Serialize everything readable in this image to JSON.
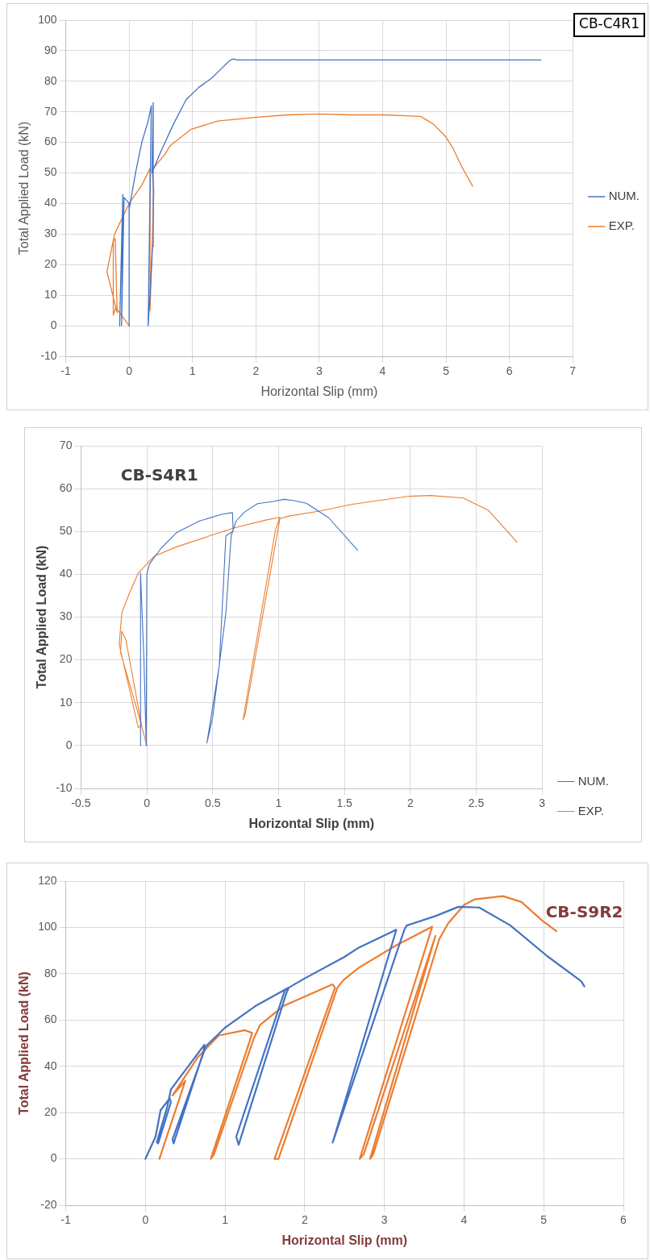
{
  "chart_data": [
    {
      "type": "line",
      "title": "CB-C4R1",
      "xlabel": "Horizontal Slip (mm)",
      "ylabel": "Total Applied Load (kN)",
      "xlim": [
        -1,
        7
      ],
      "ylim": [
        -10,
        100
      ],
      "xticks": [
        -1,
        0,
        1,
        2,
        3,
        4,
        5,
        6,
        7
      ],
      "yticks": [
        -10,
        0,
        10,
        20,
        30,
        40,
        50,
        60,
        70,
        80,
        90,
        100
      ],
      "grid": true,
      "legend": "right",
      "marker": "none",
      "series": [
        {
          "name": "NUM.",
          "color": "#4472c4",
          "x": [
            -0.15,
            -0.1,
            -0.12,
            -0.08,
            0,
            0,
            0,
            0.1,
            0.2,
            0.3,
            0.35,
            0.3,
            0.33,
            0.37,
            0.38,
            0.36,
            0.5,
            0.7,
            0.9,
            1.1,
            1.3,
            1.45,
            1.55,
            1.6,
            1.65,
            1.7,
            6.5
          ],
          "values": [
            0,
            43,
            0,
            42,
            40,
            0,
            38,
            50,
            60,
            67,
            72,
            0,
            10,
            26,
            73,
            50,
            57,
            66,
            74,
            78,
            81,
            84,
            86,
            87,
            87.3,
            87,
            87
          ]
        },
        {
          "name": "EXP.",
          "color": "#ed7d31",
          "x": [
            0,
            -0.21,
            -0.25,
            -0.25,
            -0.22,
            -0.19,
            -0.35,
            -0.23,
            0,
            0.2,
            0.33,
            0.33,
            0.39,
            0.36,
            0.56,
            0.65,
            0.98,
            1.4,
            2.06,
            2.5,
            3,
            3.5,
            4,
            4.6,
            4.8,
            4.99,
            5.1,
            5.25,
            5.42
          ],
          "values": [
            0,
            6,
            3.5,
            27.7,
            28.5,
            4.3,
            17.7,
            30,
            40,
            46,
            51.5,
            5,
            44,
            51,
            56,
            59,
            64.3,
            67,
            68.3,
            69,
            69.3,
            69,
            69,
            68.5,
            66,
            62,
            58.5,
            52,
            45.7
          ]
        }
      ]
    },
    {
      "type": "line",
      "title": "CB-S4R1",
      "xlabel": "Horizontal Slip (mm)",
      "ylabel": "Total Applied Load (kN)",
      "xlim": [
        -0.5,
        3
      ],
      "ylim": [
        -10,
        70
      ],
      "xticks": [
        -0.5,
        0,
        0.5,
        1,
        1.5,
        2,
        2.5,
        3
      ],
      "yticks": [
        -10,
        0,
        10,
        20,
        30,
        40,
        50,
        60,
        70
      ],
      "grid": true,
      "legend": "bottom right",
      "marker": "none",
      "series": [
        {
          "name": "NUM.",
          "color": "#4472c4",
          "x": [
            -0.048,
            -0.048,
            -0.022,
            -0.005,
            0,
            0.02,
            0.106,
            0.225,
            0.396,
            0.567,
            0.65,
            0.655,
            0.6,
            0.55,
            0.456,
            0.5,
            0.6,
            0.64,
            0.677,
            0.74,
            0.84,
            0.96,
            1.04,
            1.1,
            1.21,
            1.38,
            1.6
          ],
          "values": [
            0,
            40.3,
            20,
            0,
            40,
            42.4,
            46,
            49.7,
            52.4,
            54,
            54.4,
            50,
            49,
            18.8,
            0.6,
            6.7,
            31,
            49,
            52.4,
            54.5,
            56.5,
            57,
            57.5,
            57.3,
            56.6,
            53.2,
            45.6
          ]
        },
        {
          "name": "EXP.",
          "color": "#ed7d31",
          "x": [
            0,
            -0.048,
            -0.2,
            -0.19,
            -0.16,
            -0.04,
            -0.065,
            -0.21,
            -0.19,
            -0.13,
            -0.065,
            0.055,
            0.225,
            0.48,
            0.67,
            0.91,
            1.01,
            0.976,
            0.73,
            0.746,
            1.01,
            1.08,
            1.32,
            1.55,
            1.98,
            2.15,
            2.4,
            2.59,
            2.81
          ],
          "values": [
            0,
            5.5,
            21.8,
            26.7,
            24.8,
            4.8,
            4.2,
            23.6,
            31,
            35.8,
            40.3,
            44.2,
            46.4,
            49,
            50.9,
            52.7,
            53.3,
            50.3,
            6,
            7.3,
            53,
            53.6,
            54.8,
            56.3,
            58.2,
            58.4,
            57.8,
            55,
            47.5
          ]
        }
      ]
    },
    {
      "type": "line",
      "title": "CB-S9R2",
      "xlabel": "Horizontal Slip (mm)",
      "ylabel": "Total Applied Load (kN)",
      "xlim": [
        -1,
        6
      ],
      "ylim": [
        -20,
        120
      ],
      "xticks": [
        -1,
        0,
        1,
        2,
        3,
        4,
        5,
        6
      ],
      "yticks": [
        -20,
        0,
        20,
        40,
        60,
        80,
        100,
        120
      ],
      "grid": true,
      "marker": "none",
      "series": [
        {
          "color": "#4472c4",
          "x": [
            0,
            0.127,
            0.19,
            0.305,
            0.32,
            0.16,
            0.143,
            0.27,
            0.32,
            0.5,
            0.74,
            0.73,
            0.354,
            0.34,
            0.76,
            1.0,
            1.38,
            1.8,
            1.77,
            1.17,
            1.14,
            1.75,
            1.8,
            2.0,
            2.49,
            2.68,
            3.15,
            2.35,
            2.37,
            3.25,
            3.28,
            3.64,
            3.93,
            4.19,
            4.58,
            5.04,
            5.47,
            5.51
          ],
          "values": [
            0,
            9.6,
            21,
            26.2,
            24.5,
            6.7,
            7.2,
            22,
            30,
            38.3,
            49.3,
            46.4,
            6.7,
            8.4,
            48.7,
            56.7,
            66,
            74,
            71.7,
            6.1,
            9.6,
            72.8,
            74,
            78,
            87.1,
            91.3,
            99,
            7,
            9,
            99,
            100.8,
            104.9,
            108.9,
            108.6,
            100.9,
            87.7,
            76.8,
            74.5
          ]
        },
        {
          "color": "#ed7d31",
          "x": [
            0.175,
            0.5,
            0.34,
            0.66,
            0.92,
            1.25,
            1.34,
            1.31,
            0.82,
            0.86,
            1.36,
            1.44,
            1.73,
            2.35,
            2.38,
            1.62,
            1.67,
            2.41,
            2.49,
            2.68,
            3.15,
            3.6,
            2.69,
            2.74,
            3.64,
            2.82,
            2.86,
            3.69,
            3.8,
            4.0,
            4.13,
            4.49,
            4.72,
            4.98,
            5.16
          ],
          "values": [
            0,
            33.7,
            27.4,
            44,
            53.3,
            55.6,
            54.4,
            51,
            0,
            2,
            52,
            57.9,
            66,
            75.4,
            74,
            0,
            0,
            74,
            77.4,
            82.6,
            92.3,
            100.3,
            0,
            2,
            96.3,
            0,
            2,
            95,
            101.7,
            109.7,
            112.1,
            113.5,
            111,
            103,
            98.4
          ]
        }
      ]
    }
  ]
}
